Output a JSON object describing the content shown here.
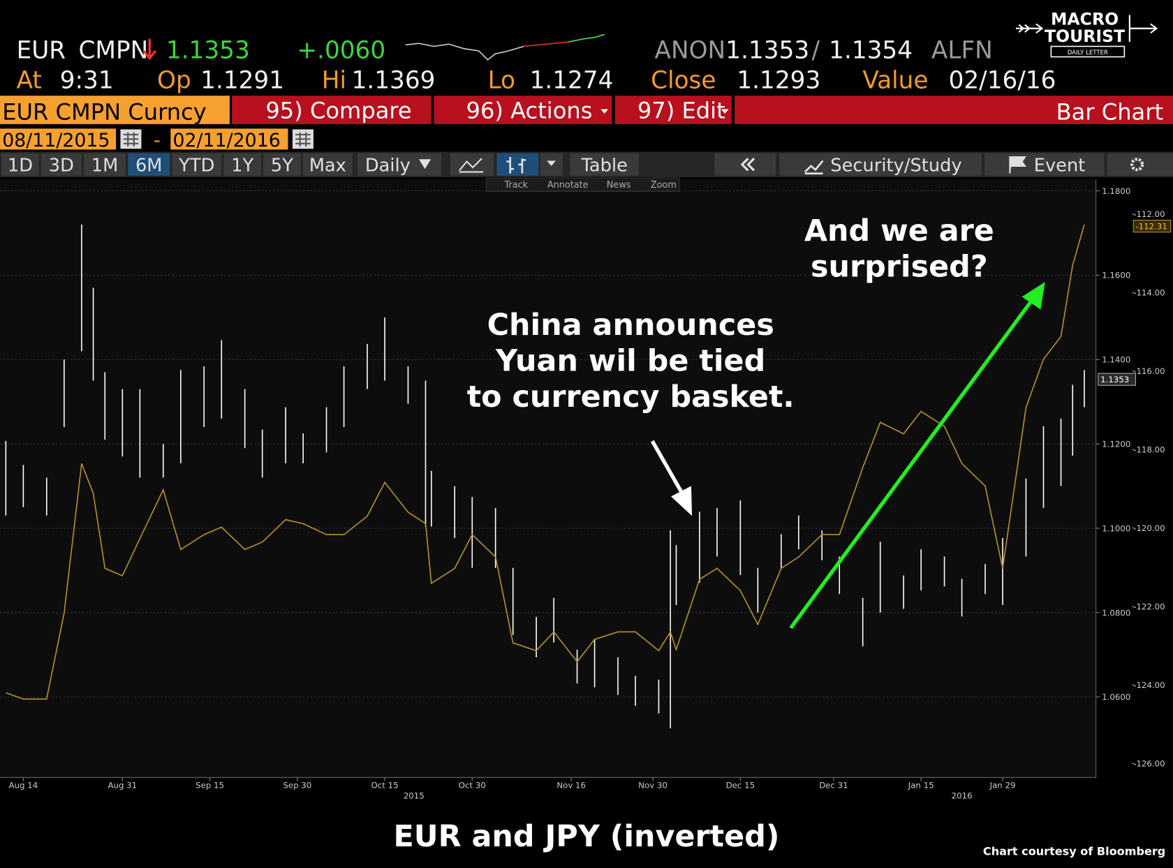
{
  "header": {
    "security": "EUR",
    "source": "CMPN",
    "last": "1.1353",
    "change": "+.0060",
    "bid_source": "ANON",
    "bid": "1.1353",
    "separator": "/",
    "ask": "1.1354",
    "ask_source": "ALFN",
    "time_label": "At",
    "time": "9:31",
    "open_label": "Op",
    "open": "1.1291",
    "high_label": "Hi",
    "high": "1.1369",
    "low_label": "Lo",
    "low": "1.1274",
    "close_label": "Close",
    "close": "1.1293",
    "value_label": "Value",
    "value_date": "02/16/16"
  },
  "toolbar": {
    "ticker": "EUR CMPN Curncy",
    "buttons": [
      "95) Compare",
      "96) Actions",
      "97) Edit"
    ],
    "view": "Bar Chart",
    "start_date": "08/11/2015",
    "date_separator": "-",
    "end_date": "02/11/2016",
    "ranges": [
      "1D",
      "3D",
      "1M",
      "6M",
      "YTD",
      "1Y",
      "5Y",
      "Max"
    ],
    "active_range": "6M",
    "frequency": "Daily",
    "table": "Table",
    "study": "Security/Study",
    "event": "Event",
    "tools": [
      "Track",
      "Annotate",
      "News",
      "Zoom"
    ]
  },
  "logo": {
    "line1": "MACRO",
    "line2": "TOURIST",
    "line3": "DAILY LETTER"
  },
  "chart_data": {
    "type": "hilo_line",
    "x": [
      "2015-08-11",
      "2015-08-14",
      "2015-08-18",
      "2015-08-21",
      "2015-08-24",
      "2015-08-26",
      "2015-08-28",
      "2015-08-31",
      "2015-09-03",
      "2015-09-07",
      "2015-09-10",
      "2015-09-14",
      "2015-09-17",
      "2015-09-21",
      "2015-09-24",
      "2015-09-28",
      "2015-10-01",
      "2015-10-05",
      "2015-10-08",
      "2015-10-12",
      "2015-10-15",
      "2015-10-19",
      "2015-10-22",
      "2015-10-23",
      "2015-10-27",
      "2015-10-30",
      "2015-11-03",
      "2015-11-06",
      "2015-11-10",
      "2015-11-13",
      "2015-11-17",
      "2015-11-20",
      "2015-11-24",
      "2015-11-27",
      "2015-12-01",
      "2015-12-03",
      "2015-12-04",
      "2015-12-08",
      "2015-12-11",
      "2015-12-15",
      "2015-12-18",
      "2015-12-22",
      "2015-12-25",
      "2015-12-29",
      "2016-01-01",
      "2016-01-05",
      "2016-01-08",
      "2016-01-12",
      "2016-01-15",
      "2016-01-19",
      "2016-01-22",
      "2016-01-26",
      "2016-01-29",
      "2016-02-02",
      "2016-02-05",
      "2016-02-08",
      "2016-02-10",
      "2016-02-12"
    ],
    "series": [
      {
        "kind": "hilo",
        "color": "#ffffff",
        "high": [
          1.1207,
          1.115,
          1.112,
          1.14,
          1.172,
          1.157,
          1.137,
          1.133,
          1.133,
          1.12,
          1.1375,
          1.1384,
          1.1446,
          1.133,
          1.1234,
          1.1287,
          1.1225,
          1.1287,
          1.1384,
          1.1437,
          1.15,
          1.1384,
          1.135,
          1.1136,
          1.11,
          1.1074,
          1.1048,
          1.0906,
          1.079,
          1.0835,
          1.0712,
          1.0738,
          1.0694,
          1.065,
          1.0641,
          1.0995,
          1.096,
          1.1039,
          1.1048,
          1.1066,
          1.0906,
          1.0986,
          1.103,
          1.0995,
          1.0933,
          1.0835,
          1.0968,
          1.0888,
          1.095,
          1.0933,
          1.088,
          1.0915,
          1.0977,
          1.1118,
          1.1242,
          1.126,
          1.134,
          1.1375
        ],
        "low": [
          1.103,
          1.105,
          1.103,
          1.124,
          1.142,
          1.135,
          1.121,
          1.117,
          1.112,
          1.112,
          1.1154,
          1.124,
          1.126,
          1.119,
          1.112,
          1.1154,
          1.1154,
          1.118,
          1.124,
          1.133,
          1.135,
          1.1295,
          1.1004,
          1.1004,
          1.0977,
          1.0906,
          1.0906,
          1.0747,
          1.0694,
          1.0729,
          1.0632,
          1.0623,
          1.0605,
          1.0579,
          1.0561,
          1.0526,
          1.0818,
          1.0871,
          1.0933,
          1.0889,
          1.08,
          1.0906,
          1.095,
          1.0924,
          1.0844,
          1.072,
          1.08,
          1.0809,
          1.0853,
          1.0862,
          1.0791,
          1.0844,
          1.0818,
          1.0933,
          1.1048,
          1.11,
          1.1172,
          1.1287
        ]
      },
      {
        "kind": "line",
        "color": "#b8922c",
        "axis": "y2",
        "values": [
          124.2,
          124.36,
          124.36,
          122.17,
          118.36,
          119.12,
          121.03,
          121.22,
          120.27,
          119.03,
          120.55,
          120.17,
          119.98,
          120.55,
          120.36,
          119.79,
          119.89,
          120.17,
          120.17,
          119.7,
          118.84,
          119.6,
          119.89,
          121.41,
          121.03,
          120.17,
          120.74,
          122.93,
          123.13,
          122.65,
          123.41,
          122.84,
          122.65,
          122.65,
          123.13,
          122.65,
          123.1,
          121.31,
          121.03,
          121.6,
          122.46,
          121.03,
          120.74,
          120.17,
          120.17,
          118.46,
          117.31,
          117.6,
          117.03,
          117.41,
          118.36,
          118.93,
          121.03,
          116.93,
          115.7,
          115.12,
          113.31,
          112.27
        ]
      }
    ],
    "xlim": [
      "2015-08-10",
      "2016-02-14"
    ],
    "xticks": [
      {
        "value": "2015-08-14",
        "label": "Aug 14"
      },
      {
        "value": "2015-08-31",
        "label": "Aug 31"
      },
      {
        "value": "2015-09-15",
        "label": "Sep 15"
      },
      {
        "value": "2015-09-30",
        "label": "Sep 30"
      },
      {
        "value": "2015-10-15",
        "label": "Oct 15"
      },
      {
        "value": "2015-10-30",
        "label": "Oct 30"
      },
      {
        "value": "2015-11-16",
        "label": "Nov 16"
      },
      {
        "value": "2015-11-30",
        "label": "Nov 30"
      },
      {
        "value": "2015-12-15",
        "label": "Dec 15"
      },
      {
        "value": "2015-12-31",
        "label": "Dec 31"
      },
      {
        "value": "2016-01-15",
        "label": "Jan 15"
      },
      {
        "value": "2016-01-29",
        "label": "Jan 29"
      }
    ],
    "year_labels": [
      {
        "value": "2015-10-20",
        "label": "2015"
      },
      {
        "value": "2016-01-22",
        "label": "2016"
      }
    ],
    "ylim": [
      1.0409,
      1.1827
    ],
    "yticks": [
      {
        "value": 1.06,
        "label": "1.0600"
      },
      {
        "value": 1.08,
        "label": "1.0800"
      },
      {
        "value": 1.1,
        "label": "1.1000"
      },
      {
        "value": 1.12,
        "label": "1.1200"
      },
      {
        "value": 1.14,
        "label": "1.1400"
      },
      {
        "value": 1.16,
        "label": "1.1600"
      },
      {
        "value": 1.18,
        "label": "1.1800"
      }
    ],
    "y2lim": [
      126.36,
      111.12
    ],
    "y2ticks": [
      {
        "value": 112,
        "label": "-112.00"
      },
      {
        "value": 114,
        "label": "-114.00"
      },
      {
        "value": 116,
        "label": "-116.00"
      },
      {
        "value": 118,
        "label": "-118.00"
      },
      {
        "value": 120,
        "label": "-120.00"
      },
      {
        "value": 122,
        "label": "-122.00"
      },
      {
        "value": 124,
        "label": "-124.00"
      },
      {
        "value": 126,
        "label": "-126.00"
      }
    ],
    "last_tags": [
      {
        "value": 1.1353,
        "label": "1.1353"
      },
      {
        "value": 112.31,
        "label": "-112.31",
        "axis": "y2"
      }
    ],
    "grid": true,
    "annotations": [
      {
        "lines": [
          "And we are",
          "surprised?"
        ]
      },
      {
        "lines": [
          "China announces",
          "Yuan wil be tied",
          "to currency basket."
        ]
      }
    ]
  },
  "footer": {
    "caption": "EUR and JPY (inverted)",
    "credit": "Chart courtesy of Bloomberg"
  }
}
